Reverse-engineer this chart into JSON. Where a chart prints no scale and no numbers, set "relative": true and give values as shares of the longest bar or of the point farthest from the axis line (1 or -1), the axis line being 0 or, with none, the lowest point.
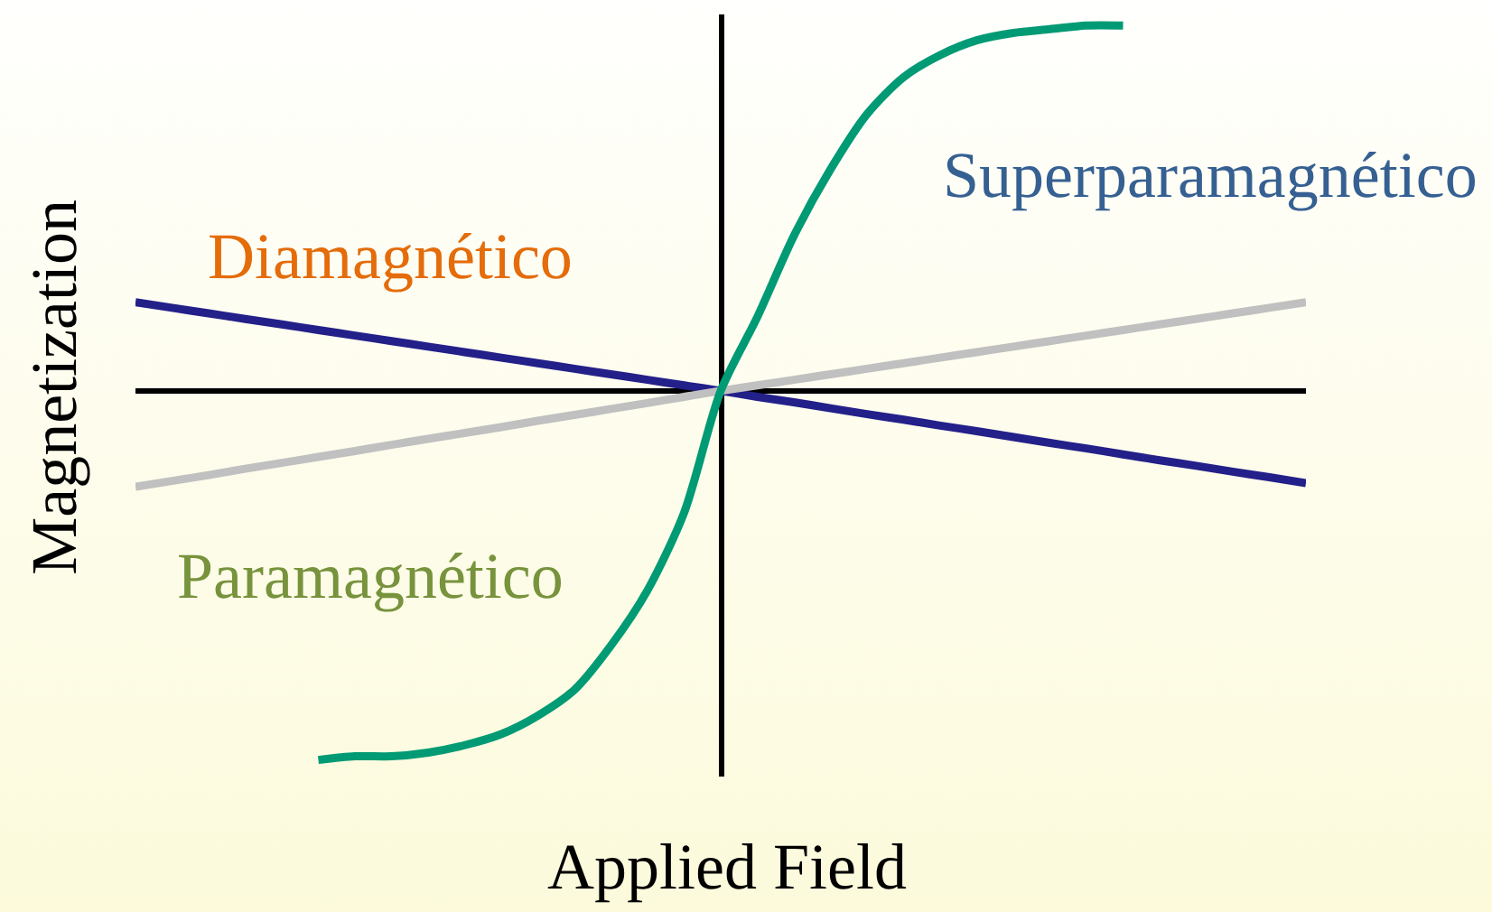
{
  "chart_data": {
    "type": "line",
    "relative": true,
    "xlabel": "Applied Field",
    "ylabel": "Magnetization",
    "categories": [
      null,
      null,
      null,
      null,
      null,
      null,
      null,
      null,
      null,
      null,
      null,
      null,
      null,
      null,
      null,
      null,
      null,
      null,
      null,
      null,
      null,
      null,
      null,
      null,
      null,
      null,
      null,
      null,
      null,
      null,
      null,
      null,
      null
    ],
    "series": [
      {
        "name": "Diamagnético",
        "color": "#23208a",
        "values": [
          0.24,
          0.225,
          0.21,
          0.195,
          0.18,
          0.165,
          0.15,
          0.135,
          0.12,
          0.105,
          0.09,
          0.075,
          0.06,
          0.045,
          0.03,
          0.015,
          0,
          -0.016,
          -0.031,
          -0.047,
          -0.063,
          -0.078,
          -0.094,
          -0.109,
          -0.125,
          -0.141,
          -0.156,
          -0.172,
          -0.188,
          -0.203,
          -0.219,
          -0.234,
          -0.25
        ]
      },
      {
        "name": "Paramagnético",
        "color": "#c0c0c0",
        "values": [
          -0.26,
          -0.244,
          -0.228,
          -0.211,
          -0.195,
          -0.179,
          -0.163,
          -0.146,
          -0.13,
          -0.114,
          -0.098,
          -0.081,
          -0.065,
          -0.049,
          -0.033,
          -0.016,
          0,
          0.015,
          0.03,
          0.045,
          0.06,
          0.075,
          0.09,
          0.105,
          0.12,
          0.135,
          0.15,
          0.165,
          0.18,
          0.195,
          0.21,
          0.225,
          0.24
        ]
      },
      {
        "name": "Superparamagnético",
        "color": "#009a74",
        "values": [
          null,
          null,
          null,
          null,
          null,
          -1,
          -0.99,
          -0.99,
          -0.98,
          -0.96,
          -0.93,
          -0.88,
          -0.81,
          -0.69,
          -0.54,
          -0.33,
          0,
          0.2,
          0.42,
          0.6,
          0.75,
          0.85,
          0.91,
          0.95,
          0.97,
          0.98,
          0.99,
          0.99,
          null,
          null,
          null,
          null,
          null
        ]
      }
    ]
  }
}
